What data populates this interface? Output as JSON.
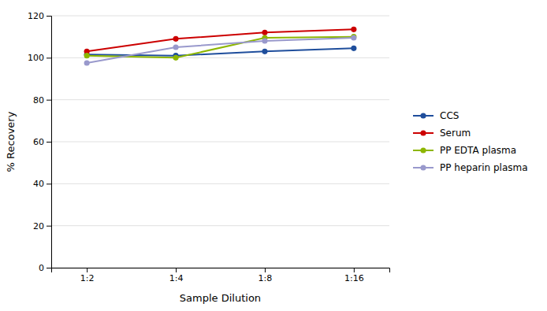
{
  "chart_data": {
    "type": "line",
    "categories": [
      "1:2",
      "1:4",
      "1:8",
      "1:16"
    ],
    "series": [
      {
        "name": "CCS",
        "color": "#1f4e9c",
        "values": [
          101.5,
          101.0,
          103.0,
          104.5
        ],
        "marker": "circle"
      },
      {
        "name": "Serum",
        "color": "#cc0000",
        "values": [
          103.0,
          109.0,
          112.0,
          113.5
        ],
        "marker": "circle"
      },
      {
        "name": "PP EDTA plasma",
        "color": "#8db600",
        "values": [
          101.0,
          100.0,
          109.5,
          110.0
        ],
        "marker": "circle"
      },
      {
        "name": "PP heparin plasma",
        "color": "#9999cc",
        "values": [
          97.5,
          105.0,
          108.0,
          109.5
        ],
        "marker": "circle"
      }
    ],
    "xlabel": "Sample Dilution",
    "ylabel": "% Recovery",
    "ylim": [
      0,
      120
    ],
    "yticks": [
      0,
      20,
      40,
      60,
      80,
      100,
      120
    ],
    "grid": true,
    "legend": "right"
  }
}
